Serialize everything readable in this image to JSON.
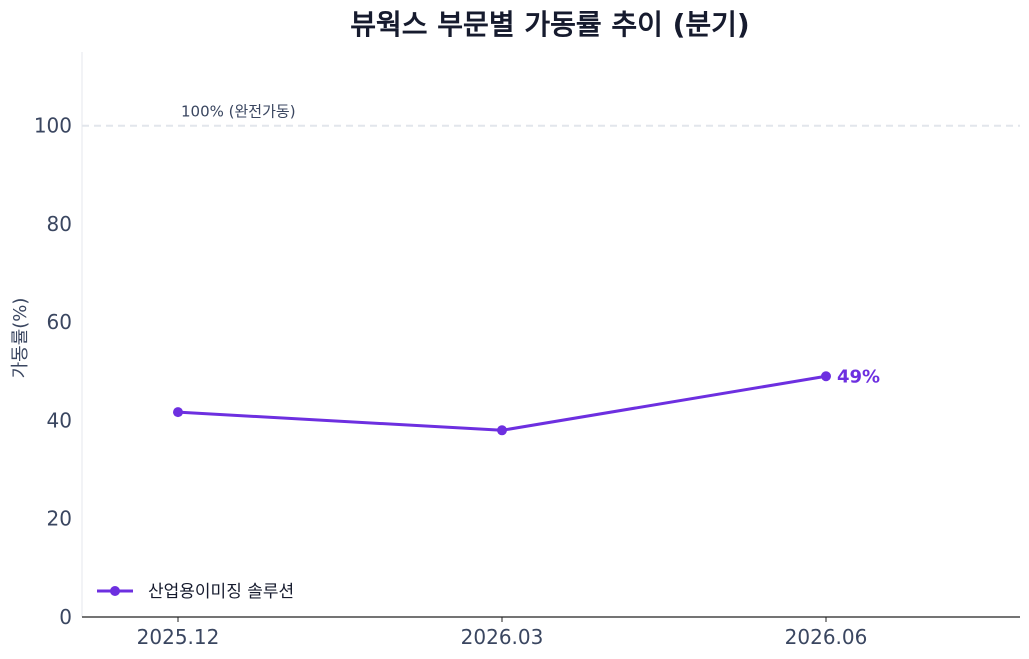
{
  "chart_data": {
    "type": "line",
    "title": "뷰웍스 부문별 가동률 추이 (분기)",
    "xlabel": "",
    "ylabel": "가동률(%)",
    "categories": [
      "2025.12",
      "2026.03",
      "2026.06"
    ],
    "ylim": [
      0,
      115
    ],
    "yticks": [
      0,
      20,
      40,
      60,
      80,
      100
    ],
    "grid": false,
    "legend_position": "bottom-left",
    "series": [
      {
        "name": "산업용이미징 솔루션",
        "values": [
          41.7,
          38.0,
          49.0
        ],
        "color": "#6d2fe0"
      }
    ],
    "annotations": {
      "last_point_label": "49%",
      "reference_line": {
        "value": 100,
        "label": "100% (완전가동)",
        "color": "#e2e6ec"
      }
    }
  }
}
